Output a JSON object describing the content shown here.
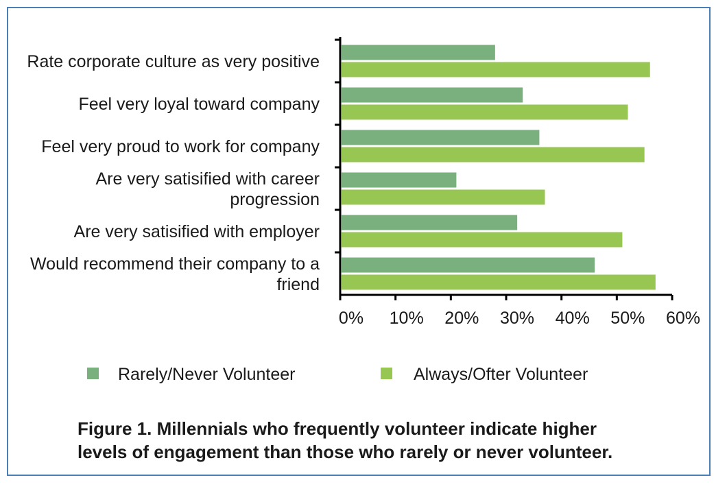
{
  "chart_data": {
    "type": "bar",
    "orientation": "horizontal",
    "categories": [
      [
        "Rate corporate culture  as very positive"
      ],
      [
        "Feel very loyal toward company"
      ],
      [
        "Feel very proud to work for company"
      ],
      [
        "Are very satisified with career",
        "progression"
      ],
      [
        "Are very satisified with employer"
      ],
      [
        "Would recommend their company to a",
        "friend"
      ]
    ],
    "series": [
      {
        "name": "Rarely/Never Volunteer",
        "color": "#7aaf7e",
        "values": [
          28,
          33,
          36,
          21,
          32,
          46
        ]
      },
      {
        "name": "Always/Ofter Volunteer",
        "color": "#97c653",
        "values": [
          56,
          52,
          55,
          37,
          51,
          57
        ]
      }
    ],
    "xlim": [
      0,
      60
    ],
    "x_ticks": [
      "0%",
      "10%",
      "20%",
      "30%",
      "40%",
      "50%",
      "60%"
    ],
    "grid": false,
    "legend_position": "bottom"
  },
  "caption": {
    "line1": "Figure 1. Millennials who frequently volunteer indicate higher",
    "line2": "levels of engagement than those who rarely or never volunteer."
  }
}
